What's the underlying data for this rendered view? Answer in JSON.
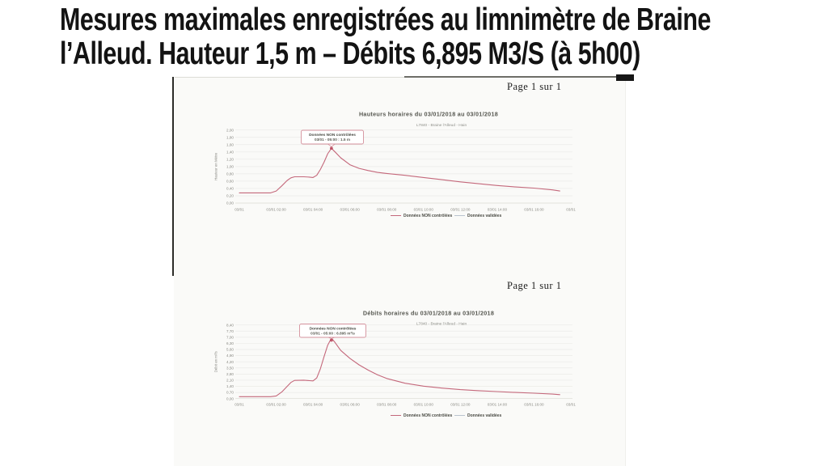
{
  "slide": {
    "title_line1": "Mesures maximales enregistrées au limnimètre de Braine",
    "title_line2": "l’Alleud. Hauteur 1,5 m – Débits 6,895 M3/S (à 5h00)"
  },
  "pages": {
    "top_label": "Page 1 sur 1",
    "bottom_label": "Page 1 sur 1"
  },
  "colors": {
    "series": "#c4687b",
    "series_border": "#d4919c",
    "validated": "#b9c3ce",
    "grid": "#ebebe7",
    "axis_line": "#d9d9d3",
    "axis_text": "#8a8a84",
    "chart_title": "#55564f",
    "subtitle_text": "#8f908a",
    "annotation_text": "#4a4b44",
    "legend_text": "#4a4b44",
    "marker": "#b8455a"
  },
  "chart_data": [
    {
      "type": "line",
      "title": "Hauteurs horaires du 03/01/2018 au 03/01/2018",
      "subtitle": "L7840 - Braine l'Alleud - Hain",
      "ylabel": "Hauteur en Mètre",
      "xlabel": "",
      "ylim": [
        0,
        2.0
      ],
      "grid": true,
      "legend_position": "bottom",
      "yticks": [
        "2,00",
        "1,80",
        "1,60",
        "1,40",
        "1,20",
        "1,00",
        "0,80",
        "0,60",
        "0,40",
        "0,20",
        "0,00"
      ],
      "xticks": [
        "03/01",
        "03/01 02:00",
        "03/01 04:00",
        "03/01 06:00",
        "03/01 08:00",
        "03/01 10:00",
        "03/01 12:00",
        "03/01 14:00",
        "03/01 16:00",
        "03/01"
      ],
      "annotation": {
        "line1": "Données NON contrôlées",
        "line2": "03/01 - 05:00 : 1.5 m"
      },
      "peak": {
        "time": "03/01 05:00",
        "x_hours": 5,
        "value": 1.5,
        "unit": "m"
      },
      "legend": [
        "Données NON contrôlées",
        "Données validées"
      ],
      "series": [
        {
          "name": "Données NON contrôlées",
          "x_hours": [
            0,
            1,
            1.7,
            2,
            2.3,
            2.6,
            2.8,
            3,
            3.5,
            3.8,
            4,
            4.2,
            4.4,
            4.6,
            4.8,
            5,
            5.2,
            5.5,
            6,
            6.5,
            7,
            7.5,
            8,
            9,
            10,
            11,
            12,
            13,
            14,
            15,
            16,
            17,
            17.4
          ],
          "values": [
            0.28,
            0.28,
            0.28,
            0.33,
            0.47,
            0.62,
            0.69,
            0.72,
            0.72,
            0.71,
            0.7,
            0.76,
            0.92,
            1.12,
            1.35,
            1.5,
            1.4,
            1.24,
            1.05,
            0.95,
            0.89,
            0.84,
            0.81,
            0.76,
            0.7,
            0.64,
            0.58,
            0.53,
            0.48,
            0.44,
            0.41,
            0.36,
            0.33
          ]
        },
        {
          "name": "Données validées",
          "x_hours": [],
          "values": []
        }
      ]
    },
    {
      "type": "line",
      "title": "Débits horaires du 03/01/2018 au 03/01/2018",
      "subtitle": "L7840 - Braine l'Alleud - Hain",
      "ylabel": "Débit en m³/s",
      "xlabel": "",
      "ylim": [
        0,
        8.4
      ],
      "grid": true,
      "legend_position": "bottom",
      "yticks": [
        "8,40",
        "7,70",
        "7,00",
        "6,30",
        "5,60",
        "4,90",
        "4,20",
        "3,50",
        "2,80",
        "2,10",
        "1,40",
        "0,70",
        "0,00"
      ],
      "xticks": [
        "03/01",
        "03/01 02:00",
        "03/01 04:00",
        "03/01 06:00",
        "03/01 08:00",
        "03/01 10:00",
        "03/01 12:00",
        "03/01 14:00",
        "03/01 16:00",
        "03/01"
      ],
      "annotation": {
        "line1": "Données NON contrôlées",
        "line2": "03/01 - 05:00 : 6.895 m³/s"
      },
      "peak": {
        "time": "03/01 05:00",
        "x_hours": 5,
        "value": 6.895,
        "unit": "m³/s"
      },
      "legend": [
        "Données NON contrôlées",
        "Données validées"
      ],
      "series": [
        {
          "name": "Données NON contrôlées",
          "x_hours": [
            0,
            1,
            1.7,
            2,
            2.3,
            2.6,
            2.8,
            3,
            3.5,
            3.8,
            4,
            4.2,
            4.4,
            4.6,
            4.8,
            5,
            5.2,
            5.5,
            6,
            6.5,
            7,
            7.5,
            8,
            9,
            10,
            11,
            12,
            13,
            14,
            15,
            16,
            17,
            17.4
          ],
          "values": [
            0.22,
            0.22,
            0.22,
            0.3,
            0.75,
            1.4,
            1.85,
            2.08,
            2.1,
            2.05,
            2.02,
            2.35,
            3.4,
            4.8,
            6.1,
            6.895,
            6.4,
            5.5,
            4.6,
            3.85,
            3.25,
            2.72,
            2.3,
            1.75,
            1.42,
            1.2,
            1.02,
            0.9,
            0.8,
            0.7,
            0.62,
            0.52,
            0.45
          ]
        },
        {
          "name": "Données validées",
          "x_hours": [],
          "values": []
        }
      ]
    }
  ]
}
